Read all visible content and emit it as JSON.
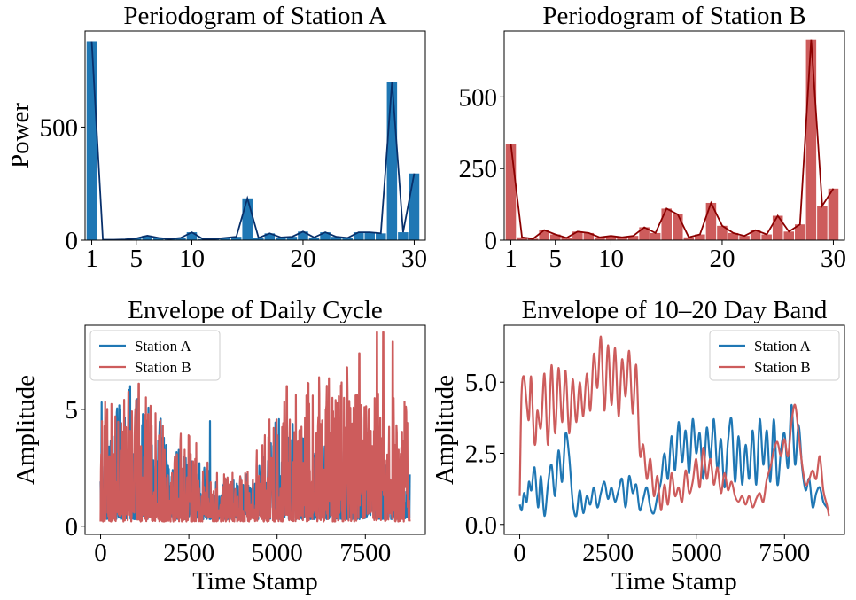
{
  "chart_data": [
    {
      "type": "bar",
      "title": "Periodogram of Station A",
      "xlabel": "",
      "ylabel": "Power",
      "x": [
        1,
        2,
        3,
        4,
        5,
        6,
        7,
        8,
        9,
        10,
        11,
        12,
        13,
        14,
        15,
        16,
        17,
        18,
        19,
        20,
        21,
        22,
        23,
        24,
        25,
        26,
        27,
        28,
        29,
        30
      ],
      "values": [
        880,
        2,
        2,
        3,
        8,
        20,
        10,
        5,
        10,
        35,
        5,
        5,
        10,
        15,
        185,
        10,
        30,
        12,
        15,
        38,
        12,
        35,
        15,
        10,
        35,
        35,
        30,
        700,
        35,
        295
      ],
      "line": {
        "values": [
          880,
          2,
          2,
          3,
          8,
          20,
          10,
          5,
          10,
          35,
          5,
          5,
          10,
          15,
          185,
          10,
          30,
          12,
          15,
          38,
          12,
          35,
          15,
          10,
          35,
          35,
          30,
          700,
          35,
          295
        ]
      },
      "bar_color": "#1f77b4",
      "line_color": "#08306b",
      "xticks": [
        1,
        5,
        10,
        20,
        30
      ],
      "yticks": [
        0,
        500
      ],
      "xlim": [
        0.4,
        31.0
      ],
      "ylim": [
        0,
        925
      ]
    },
    {
      "type": "bar",
      "title": "Periodogram of Station B",
      "xlabel": "",
      "ylabel": "",
      "x": [
        1,
        2,
        3,
        4,
        5,
        6,
        7,
        8,
        9,
        10,
        11,
        12,
        13,
        14,
        15,
        16,
        17,
        18,
        19,
        20,
        21,
        22,
        23,
        24,
        25,
        26,
        27,
        28,
        29,
        30
      ],
      "values": [
        335,
        10,
        5,
        35,
        20,
        8,
        30,
        25,
        10,
        15,
        10,
        15,
        45,
        25,
        110,
        90,
        10,
        20,
        130,
        50,
        25,
        15,
        35,
        20,
        85,
        30,
        55,
        700,
        120,
        180
      ],
      "line": {
        "values": [
          335,
          10,
          5,
          35,
          20,
          8,
          30,
          25,
          10,
          15,
          10,
          15,
          45,
          25,
          110,
          90,
          10,
          20,
          130,
          50,
          25,
          15,
          35,
          20,
          85,
          30,
          55,
          700,
          120,
          180
        ]
      },
      "bar_color": "#cd5c5c",
      "line_color": "#8b0000",
      "xticks": [
        1,
        5,
        10,
        20,
        30
      ],
      "yticks": [
        0,
        250,
        500
      ],
      "xlim": [
        0.4,
        31.0
      ],
      "ylim": [
        0,
        730
      ]
    },
    {
      "type": "line",
      "title": "Envelope of Daily Cycle",
      "xlabel": "Time Stamp",
      "ylabel": "Amplitude",
      "xticks": [
        0,
        2500,
        5000,
        7500
      ],
      "yticks": [
        0,
        5
      ],
      "xlim": [
        -440,
        9200
      ],
      "ylim": [
        -0.35,
        8.6
      ],
      "legend": "upper left",
      "series": [
        {
          "name": "Station A",
          "color": "#1f77b4",
          "n": 880,
          "x_end": 8760,
          "base": 0.3,
          "amp": 2.2,
          "peaks": [
            [
              30,
              5.3
            ],
            [
              1200,
              4.8
            ],
            [
              1700,
              4.6
            ],
            [
              3100,
              4.5
            ],
            [
              5700,
              3.8
            ],
            [
              7200,
              3.4
            ],
            [
              7600,
              4.2
            ],
            [
              8520,
              3.0
            ]
          ],
          "segments": [
            [
              0,
              0.7
            ],
            [
              800,
              1.2
            ],
            [
              2100,
              0.7
            ],
            [
              3400,
              0.35
            ],
            [
              4200,
              0.4
            ],
            [
              5000,
              0.9
            ],
            [
              6200,
              0.8
            ],
            [
              8800,
              0.4
            ]
          ]
        },
        {
          "name": "Station B",
          "color": "#cd5c5c",
          "n": 880,
          "x_end": 8760,
          "base": 0.2,
          "amp": 2.6,
          "peaks": [
            [
              40,
              4.5
            ],
            [
              1080,
              6.1
            ],
            [
              1350,
              4.8
            ],
            [
              5280,
              6.0
            ],
            [
              6380,
              5.0
            ],
            [
              6980,
              6.8
            ],
            [
              7330,
              7.4
            ],
            [
              7830,
              8.3
            ],
            [
              8010,
              8.3
            ],
            [
              8280,
              7.9
            ]
          ],
          "segments": [
            [
              0,
              0.9
            ],
            [
              900,
              1.0
            ],
            [
              2100,
              0.8
            ],
            [
              3400,
              0.35
            ],
            [
              4200,
              0.4
            ],
            [
              5000,
              0.9
            ],
            [
              6200,
              1.1
            ],
            [
              8800,
              0.9
            ]
          ]
        }
      ]
    },
    {
      "type": "line",
      "title": "Envelope of 10–20 Day Band",
      "xlabel": "Time Stamp",
      "ylabel": "Amplitude",
      "xticks": [
        0,
        2500,
        5000,
        7500
      ],
      "yticks": [
        0.0,
        2.5,
        5.0
      ],
      "ytick_labels": [
        "0.0",
        "2.5",
        "5.0"
      ],
      "xlim": [
        -440,
        9200
      ],
      "ylim": [
        -0.35,
        7.0
      ],
      "legend": "upper right",
      "series": [
        {
          "name": "Station A",
          "color": "#1f77b4",
          "x": [
            0,
            60,
            120,
            200,
            260,
            330,
            420,
            520,
            600,
            700,
            800,
            900,
            1000,
            1100,
            1200,
            1300,
            1400,
            1500,
            1600,
            1700,
            1800,
            1900,
            2000,
            2100,
            2200,
            2300,
            2400,
            2500,
            2600,
            2700,
            2800,
            2900,
            3000,
            3100,
            3200,
            3300,
            3400,
            3500,
            3600,
            3700,
            3800,
            3900,
            4000,
            4100,
            4200,
            4300,
            4400,
            4500,
            4600,
            4700,
            4800,
            4900,
            5000,
            5100,
            5200,
            5300,
            5400,
            5500,
            5600,
            5700,
            5800,
            5900,
            6000,
            6100,
            6200,
            6300,
            6400,
            6500,
            6600,
            6700,
            6800,
            6900,
            7000,
            7100,
            7200,
            7300,
            7400,
            7500,
            7600,
            7700,
            7800,
            7900,
            8000,
            8100,
            8200,
            8300,
            8400,
            8500,
            8600,
            8700,
            8760
          ],
          "y": [
            0.7,
            0.5,
            1.1,
            0.8,
            1.5,
            1.2,
            2.0,
            0.6,
            1.7,
            0.3,
            1.4,
            2.1,
            1.0,
            2.6,
            1.5,
            3.2,
            2.4,
            0.8,
            0.3,
            1.2,
            0.4,
            1.0,
            0.7,
            1.3,
            0.6,
            1.1,
            1.5,
            0.9,
            1.3,
            0.8,
            1.2,
            1.6,
            0.6,
            1.7,
            1.1,
            1.4,
            0.5,
            0.9,
            1.3,
            0.6,
            0.4,
            1.0,
            1.5,
            2.5,
            1.6,
            3.1,
            1.9,
            3.6,
            2.2,
            3.3,
            1.8,
            3.7,
            2.5,
            3.2,
            1.6,
            3.4,
            2.3,
            3.7,
            1.9,
            3.0,
            1.3,
            2.9,
            3.7,
            1.5,
            3.1,
            1.4,
            2.8,
            1.6,
            3.3,
            1.4,
            3.7,
            2.1,
            3.3,
            1.5,
            3.7,
            1.4,
            2.6,
            3.2,
            2.0,
            4.2,
            2.1,
            3.5,
            2.0,
            1.2,
            1.6,
            0.6,
            1.1,
            1.3,
            0.8,
            0.6,
            0.5
          ]
        },
        {
          "name": "Station B",
          "color": "#cd5c5c",
          "x": [
            0,
            50,
            120,
            200,
            260,
            320,
            400,
            450,
            500,
            600,
            700,
            800,
            900,
            1000,
            1100,
            1200,
            1300,
            1400,
            1500,
            1600,
            1700,
            1800,
            1900,
            2000,
            2100,
            2200,
            2300,
            2400,
            2500,
            2600,
            2700,
            2800,
            2900,
            3000,
            3100,
            3200,
            3300,
            3400,
            3500,
            3600,
            3700,
            3800,
            3900,
            4000,
            4100,
            4200,
            4300,
            4400,
            4500,
            4600,
            4700,
            4800,
            4900,
            5000,
            5100,
            5200,
            5300,
            5400,
            5500,
            5600,
            5700,
            5800,
            5900,
            6000,
            6100,
            6200,
            6300,
            6400,
            6500,
            6600,
            6700,
            6800,
            6900,
            7000,
            7100,
            7200,
            7300,
            7400,
            7500,
            7600,
            7700,
            7800,
            7900,
            8000,
            8100,
            8200,
            8300,
            8400,
            8500,
            8600,
            8700,
            8760
          ],
          "y": [
            1.0,
            4.5,
            5.2,
            4.2,
            3.7,
            5.2,
            3.1,
            2.9,
            4.0,
            3.4,
            5.3,
            2.8,
            5.6,
            3.2,
            5.5,
            3.6,
            5.4,
            3.2,
            5.1,
            3.6,
            5.0,
            3.8,
            5.3,
            4.0,
            6.0,
            4.8,
            6.6,
            4.0,
            6.3,
            4.2,
            6.2,
            3.8,
            5.8,
            4.5,
            6.1,
            3.9,
            5.6,
            2.5,
            2.8,
            1.6,
            2.3,
            1.0,
            1.7,
            0.5,
            1.4,
            0.7,
            1.8,
            1.0,
            1.3,
            0.8,
            1.9,
            1.1,
            1.5,
            2.3,
            1.3,
            2.7,
            1.6,
            2.3,
            1.4,
            2.0,
            1.1,
            1.8,
            1.2,
            1.5,
            1.0,
            0.8,
            1.0,
            0.7,
            1.0,
            0.6,
            0.9,
            1.1,
            0.8,
            1.6,
            2.0,
            2.6,
            2.9,
            2.4,
            3.0,
            2.4,
            3.6,
            4.2,
            3.2,
            2.1,
            1.4,
            1.6,
            1.9,
            1.6,
            2.4,
            1.2,
            0.7,
            0.3
          ]
        }
      ]
    }
  ]
}
